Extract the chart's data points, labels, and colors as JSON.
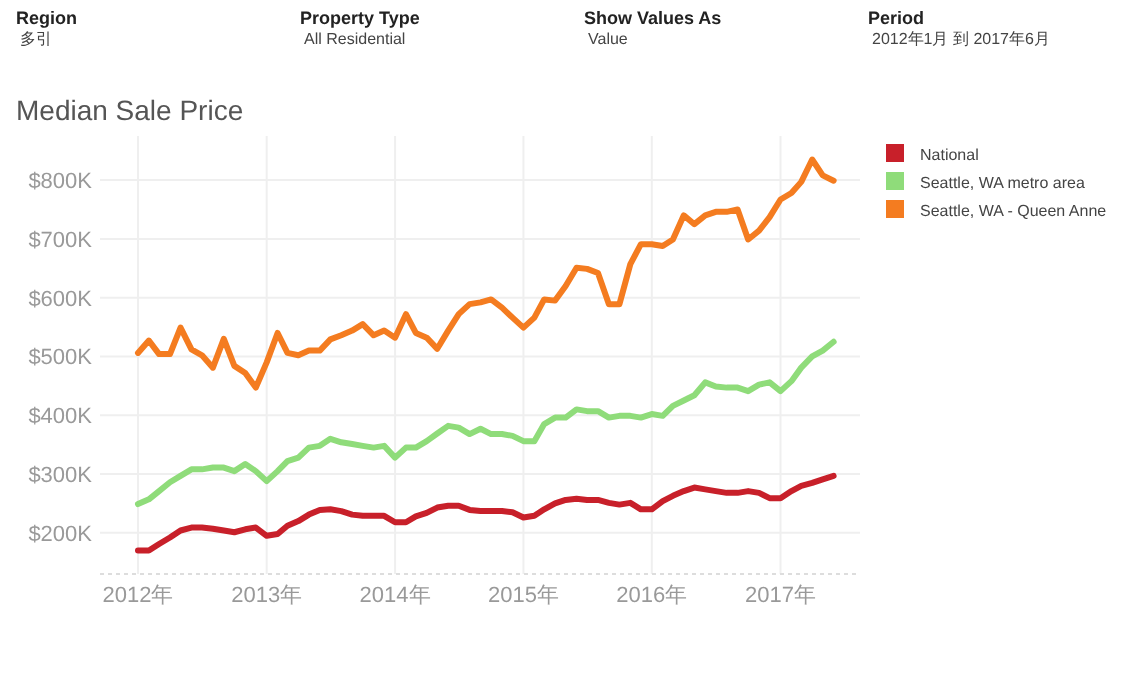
{
  "chart_data": {
    "type": "line",
    "title": "Median Sale Price",
    "annotations": [
      "Region",
      "多引",
      "Property Type",
      "All Residential",
      "Show Values As",
      "Value",
      "Period",
      "2012年1月 到 2017年6月"
    ],
    "x": [
      "2012-01",
      "2012-02",
      "2012-03",
      "2012-04",
      "2012-05",
      "2012-06",
      "2012-07",
      "2012-08",
      "2012-09",
      "2012-10",
      "2012-11",
      "2012-12",
      "2013-01",
      "2013-02",
      "2013-03",
      "2013-04",
      "2013-05",
      "2013-06",
      "2013-07",
      "2013-08",
      "2013-09",
      "2013-10",
      "2013-11",
      "2013-12",
      "2014-01",
      "2014-02",
      "2014-03",
      "2014-04",
      "2014-05",
      "2014-06",
      "2014-07",
      "2014-08",
      "2014-09",
      "2014-10",
      "2014-11",
      "2014-12",
      "2015-01",
      "2015-02",
      "2015-03",
      "2015-04",
      "2015-05",
      "2015-06",
      "2015-07",
      "2015-08",
      "2015-09",
      "2015-10",
      "2015-11",
      "2015-12",
      "2016-01",
      "2016-02",
      "2016-03",
      "2016-04",
      "2016-05",
      "2016-06",
      "2016-07",
      "2016-08",
      "2016-09",
      "2016-10",
      "2016-11",
      "2016-12",
      "2017-01",
      "2017-02",
      "2017-03",
      "2017-04",
      "2017-05",
      "2017-06"
    ],
    "series": [
      {
        "name": "National",
        "color": "#c8202a",
        "values": [
          170,
          170,
          181,
          192,
          204,
          209,
          209,
          207,
          204,
          201,
          206,
          209,
          195,
          198,
          212,
          220,
          231,
          239,
          240,
          237,
          231,
          229,
          229,
          229,
          218,
          218,
          228,
          234,
          243,
          246,
          246,
          239,
          237,
          237,
          237,
          235,
          226,
          229,
          240,
          250,
          256,
          258,
          256,
          256,
          251,
          248,
          251,
          240,
          240,
          254,
          263,
          271,
          277,
          274,
          271,
          268,
          268,
          271,
          268,
          259,
          259,
          271,
          280,
          285,
          291,
          297
        ]
      },
      {
        "name": "Seattle, WA metro area",
        "color": "#8fdc7a",
        "values": [
          249,
          257,
          271,
          286,
          297,
          308,
          308,
          311,
          311,
          305,
          317,
          305,
          288,
          305,
          322,
          328,
          345,
          348,
          360,
          354,
          351,
          348,
          345,
          348,
          328,
          345,
          345,
          356,
          369,
          382,
          379,
          368,
          377,
          368,
          368,
          365,
          356,
          356,
          385,
          396,
          396,
          410,
          407,
          407,
          396,
          399,
          399,
          396,
          402,
          399,
          416,
          425,
          434,
          456,
          449,
          447,
          447,
          441,
          452,
          456,
          441,
          458,
          481,
          500,
          510,
          525
        ]
      },
      {
        "name": "Seattle, WA - Queen Anne",
        "color": "#f47c20",
        "values": [
          506,
          527,
          504,
          504,
          549,
          512,
          502,
          481,
          530,
          484,
          472,
          447,
          490,
          540,
          506,
          502,
          510,
          510,
          529,
          536,
          544,
          555,
          536,
          544,
          532,
          572,
          540,
          532,
          513,
          544,
          572,
          589,
          592,
          597,
          583,
          566,
          549,
          566,
          597,
          595,
          620,
          651,
          649,
          642,
          589,
          589,
          657,
          691,
          691,
          688,
          699,
          740,
          725,
          740,
          746,
          746,
          750,
          699,
          714,
          737,
          767,
          778,
          797,
          835,
          808,
          799
        ]
      }
    ],
    "xlim": [
      "2011-09-15",
      "2017-08-15"
    ],
    "xticks": [
      {
        "value": "2012-01",
        "label": "2012年"
      },
      {
        "value": "2013-01",
        "label": "2013年"
      },
      {
        "value": "2014-01",
        "label": "2014年"
      },
      {
        "value": "2015-01",
        "label": "2015年"
      },
      {
        "value": "2016-01",
        "label": "2016年"
      },
      {
        "value": "2017-01",
        "label": "2017年"
      }
    ],
    "ylim": [
      130,
      875
    ],
    "yticks": [
      {
        "value": 200,
        "label": "$200K"
      },
      {
        "value": 300,
        "label": "$300K"
      },
      {
        "value": 400,
        "label": "$400K"
      },
      {
        "value": 500,
        "label": "$500K"
      },
      {
        "value": 600,
        "label": "$600K"
      },
      {
        "value": 700,
        "label": "$700K"
      },
      {
        "value": 800,
        "label": "$800K"
      }
    ],
    "grid": true,
    "legend": "right",
    "marker": "none",
    "line_style": "solid"
  }
}
